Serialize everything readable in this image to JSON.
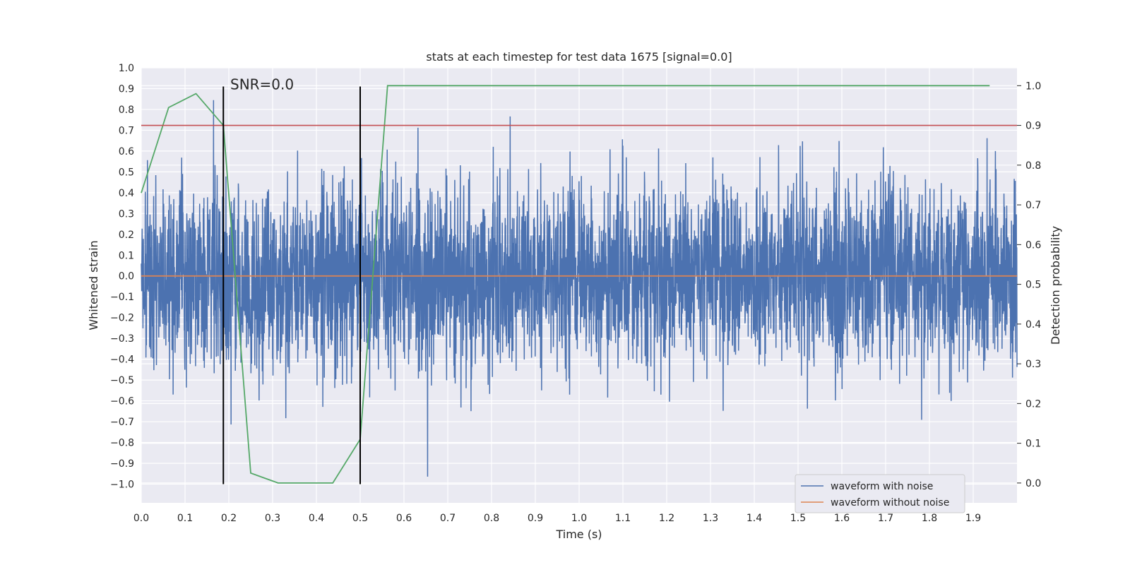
{
  "chart_data": {
    "type": "line",
    "title": "stats at each timestep for test data 1675 [signal=0.0]",
    "xlabel": "Time (s)",
    "ylabel": "Whitened strain",
    "ylabel_right": "Detection probability",
    "xlim": [
      0.0,
      2.0
    ],
    "ylim": [
      -1.09,
      1.0
    ],
    "ylim_right": [
      -0.05,
      1.045
    ],
    "x_ticks": [
      "0.0",
      "0.1",
      "0.2",
      "0.3",
      "0.4",
      "0.5",
      "0.6",
      "0.7",
      "0.8",
      "0.9",
      "1.0",
      "1.1",
      "1.2",
      "1.3",
      "1.4",
      "1.5",
      "1.6",
      "1.7",
      "1.8",
      "1.9"
    ],
    "y_ticks": [
      "1.0",
      "0.9",
      "0.8",
      "0.7",
      "0.6",
      "0.5",
      "0.4",
      "0.3",
      "0.2",
      "0.1",
      "0.0",
      "−0.1",
      "−0.2",
      "−0.3",
      "−0.4",
      "−0.5",
      "−0.6",
      "−0.7",
      "−0.8",
      "−0.9",
      "−1.0"
    ],
    "y_ticks_right": [
      "1.0",
      "0.9",
      "0.8",
      "0.7",
      "0.6",
      "0.5",
      "0.4",
      "0.3",
      "0.2",
      "0.1",
      "0.0"
    ],
    "grid": true,
    "legend_position": "bottom-right",
    "series": [
      {
        "name": "waveform with noise",
        "axis": "left",
        "color": "#4c72b0",
        "kind": "noise",
        "n_points": 4096,
        "x_range": [
          0.0,
          2.0
        ],
        "amplitude": 0.22,
        "clip": [
          -1.0,
          0.92
        ],
        "seed": 1675
      },
      {
        "name": "waveform without noise",
        "axis": "left",
        "color": "#dd8452",
        "x": [
          0.0,
          2.0
        ],
        "y": [
          0.0,
          0.0
        ]
      },
      {
        "name": "",
        "axis": "right",
        "color": "#55a868",
        "x": [
          0.0,
          0.0625,
          0.125,
          0.1875,
          0.25,
          0.3125,
          0.4375,
          0.5,
          0.5625,
          1.9375
        ],
        "y": [
          0.73,
          0.945,
          0.98,
          0.9,
          0.025,
          0.0,
          0.0,
          0.11,
          1.0,
          1.0
        ]
      }
    ],
    "threshold": {
      "axis": "right",
      "value": 0.9,
      "color": "#c44e52"
    },
    "markers": {
      "x": [
        0.1875,
        0.5
      ],
      "y_range": [
        -1.0,
        0.91
      ],
      "color": "#000000"
    },
    "annotation": {
      "text": "SNR=0.0",
      "x": 0.2,
      "y": 0.91
    }
  }
}
